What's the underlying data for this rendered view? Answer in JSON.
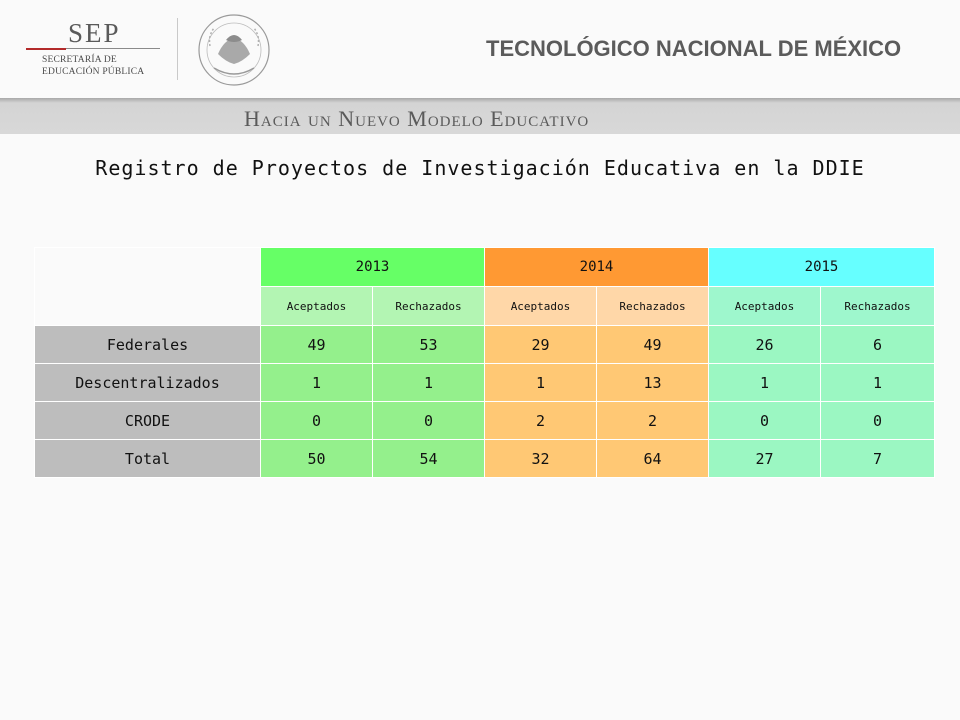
{
  "header": {
    "sep_word": "SEP",
    "sep_line1": "SECRETARÍA DE",
    "sep_line2": "EDUCACIÓN PÚBLICA",
    "institution": "TECNOLÓGICO NACIONAL DE MÉXICO",
    "banner": "Hacia un Nuevo Modelo Educativo",
    "seal_icon": "mexican-coat-of-arms-seal"
  },
  "title": "Registro de Proyectos de Investigación Educativa en la DDIE",
  "table": {
    "years": [
      "2013",
      "2014",
      "2015"
    ],
    "subheaders": [
      "Aceptados",
      "Rechazados",
      "Aceptados",
      "Rechazados",
      "Aceptados",
      "Rechazados"
    ],
    "rows": [
      {
        "label": "Federales",
        "values": [
          "49",
          "53",
          "29",
          "49",
          "26",
          "6"
        ]
      },
      {
        "label": "Descentralizados",
        "values": [
          "1",
          "1",
          "1",
          "13",
          "1",
          "1"
        ]
      },
      {
        "label": "CRODE",
        "values": [
          "0",
          "0",
          "2",
          "2",
          "0",
          "0"
        ]
      },
      {
        "label": "Total",
        "values": [
          "50",
          "54",
          "32",
          "64",
          "27",
          "7"
        ]
      }
    ]
  },
  "colors": {
    "year_2013": "#66ff66",
    "year_2014": "#ff9933",
    "year_2015": "#66ffff",
    "row_label": "#bdbdbd"
  }
}
